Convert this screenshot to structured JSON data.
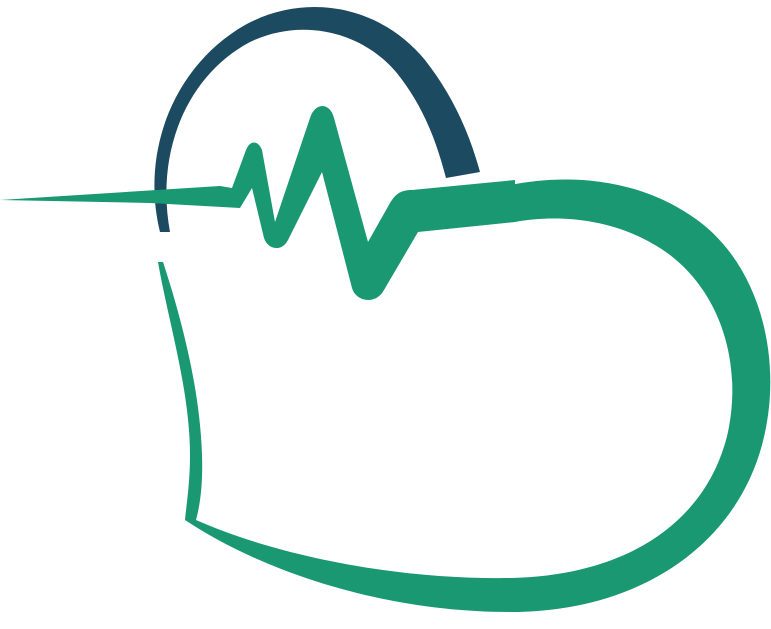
{
  "logo": {
    "icon": "heart-pulse-icon",
    "colors": {
      "arc": "#1c4a60",
      "heart": "#1a9871",
      "background": "#ffffff"
    }
  }
}
